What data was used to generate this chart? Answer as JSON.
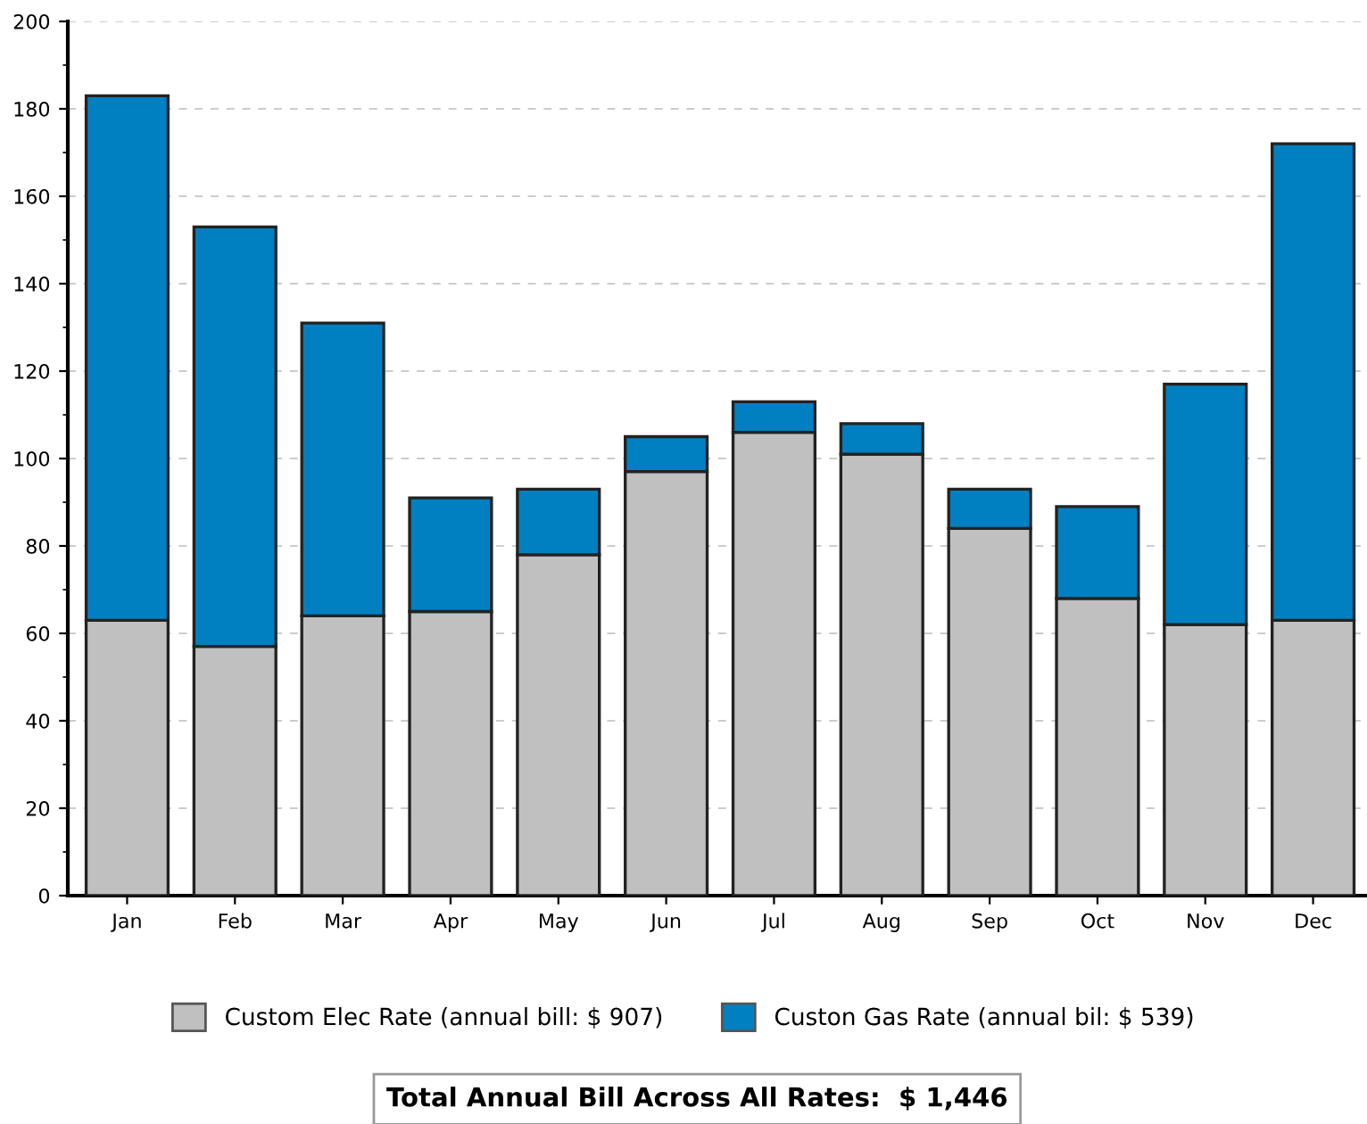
{
  "chart_data": {
    "type": "bar",
    "stacked": true,
    "categories": [
      "Jan",
      "Feb",
      "Mar",
      "Apr",
      "May",
      "Jun",
      "Jul",
      "Aug",
      "Sep",
      "Oct",
      "Nov",
      "Dec"
    ],
    "series": [
      {
        "name": "Custom Elec Rate (annual bill: $ 907)",
        "color": "#c0c0c0",
        "values": [
          63,
          57,
          64,
          65,
          78,
          97,
          106,
          101,
          84,
          68,
          62,
          63
        ]
      },
      {
        "name": "Custon Gas Rate (annual bil: $ 539)",
        "color": "#0080c0",
        "values": [
          120,
          96,
          67,
          26,
          15,
          8,
          7,
          7,
          9,
          21,
          55,
          109
        ]
      }
    ],
    "ylim": [
      0,
      200
    ],
    "yticks": [
      0,
      20,
      40,
      60,
      80,
      100,
      120,
      140,
      160,
      180,
      200
    ],
    "grid": "y",
    "legend": "bottom",
    "annotations": [
      "Total Annual Bill Across All Rates:  $ 1,446"
    ]
  }
}
